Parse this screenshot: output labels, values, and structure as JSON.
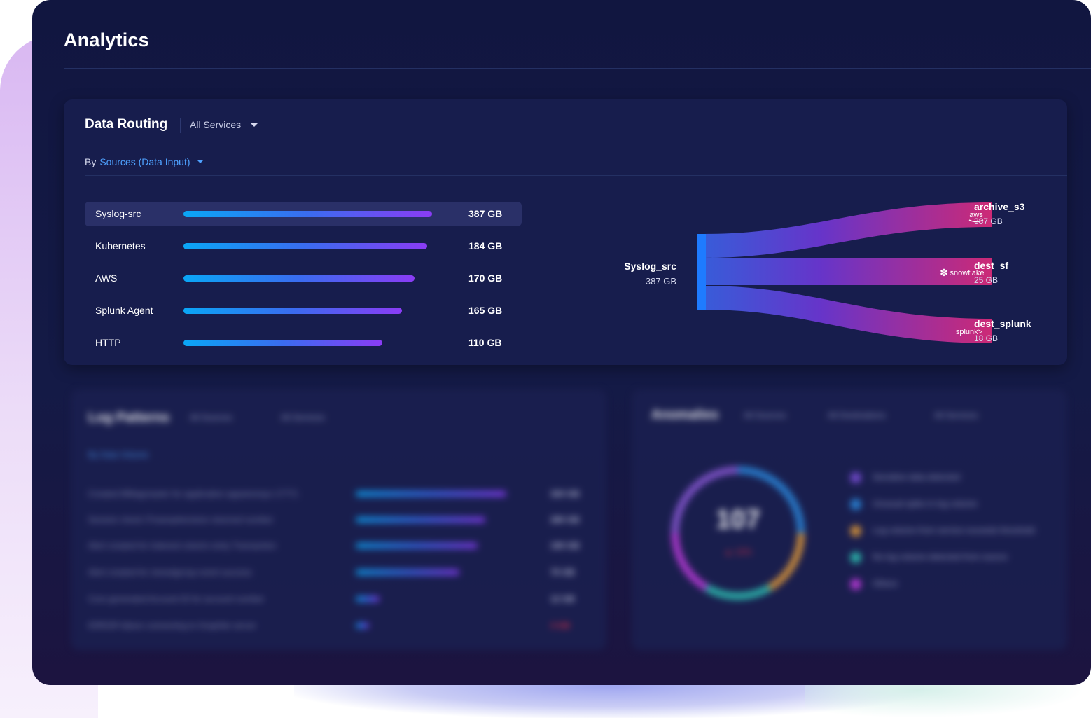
{
  "page": {
    "title": "Analytics"
  },
  "data_routing": {
    "title": "Data Routing",
    "services_filter": "All Services",
    "by_label": "By",
    "by_value": "Sources (Data Input)",
    "sources": [
      {
        "name": "Syslog-src",
        "value_label": "387 GB",
        "level": 1.0
      },
      {
        "name": "Kubernetes",
        "value_label": "184 GB",
        "level": 0.98
      },
      {
        "name": "AWS",
        "value_label": "170 GB",
        "level": 0.93
      },
      {
        "name": "Splunk Agent",
        "value_label": "165 GB",
        "level": 0.88
      },
      {
        "name": "HTTP",
        "value_label": "110 GB",
        "level": 0.8
      }
    ],
    "sankey": {
      "source": {
        "name": "Syslog_src",
        "value": "387 GB"
      },
      "destinations": [
        {
          "name": "archive_s3",
          "value": "387 GB",
          "logo": "aws"
        },
        {
          "name": "dest_sf",
          "value": "25 GB",
          "logo": "snowflake"
        },
        {
          "name": "dest_splunk",
          "value": "18 GB",
          "logo": "splunk>"
        }
      ]
    }
  },
  "log_patterns": {
    "title": "Log Patterns",
    "filters": [
      "All Sources",
      "All Services"
    ],
    "by_value": "By Data Volume",
    "rows": [
      {
        "label": "Created MMagroaster for application appstoresys 17771",
        "value": "320 GB",
        "level": 1.0
      },
      {
        "label": "Session check ITmanaaherstore returned number",
        "value": "280 GB",
        "level": 0.86
      },
      {
        "label": "Alert created for indexed column entry Transaction",
        "value": "190 GB",
        "level": 0.81
      },
      {
        "label": "Alert created for closedgroup event success",
        "value": "75 GB",
        "level": 0.69
      },
      {
        "label": "Core generated Account ID for account number",
        "value": "12 GB",
        "level": 0.16
      },
      {
        "label": "ERROR failure connecting to Graphite server",
        "value": "3 GB",
        "level": 0.09
      }
    ]
  },
  "anomalies": {
    "title": "Anomalies",
    "filters": [
      "All Sources",
      "All Destinations",
      "All Services"
    ],
    "total": "107",
    "change": "▲ 10%",
    "legend": [
      {
        "label": "Sensitive data detected",
        "color": "#7a4fd8"
      },
      {
        "label": "Unusual spike in log volume",
        "color": "#2b8be0"
      },
      {
        "label": "Log volume from service exceeds threshold",
        "color": "#e09a3a"
      },
      {
        "label": "No log volume detected from source",
        "color": "#2ec4b6"
      },
      {
        "label": "Others",
        "color": "#c03ce0"
      }
    ]
  }
}
